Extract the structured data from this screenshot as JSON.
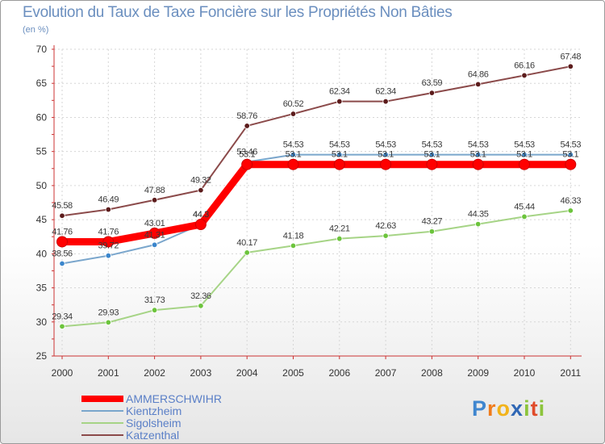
{
  "title": "Evolution du Taux de Taxe Foncière sur les Propriétés Non Bâties",
  "subtitle": "(en %)",
  "chart_data": {
    "type": "line",
    "title": "Evolution du Taux de Taxe Foncière sur les Propriétés Non Bâties",
    "ylabel": "(en %)",
    "xlabel": "",
    "categories": [
      "2000",
      "2001",
      "2002",
      "2003",
      "2004",
      "2005",
      "2006",
      "2007",
      "2008",
      "2009",
      "2010",
      "2011"
    ],
    "ylim": [
      25,
      70
    ],
    "yticks": [
      "25",
      "30",
      "35",
      "40",
      "45",
      "50",
      "55",
      "60",
      "65",
      "70"
    ],
    "grid": true,
    "legend_position": "bottom-left",
    "series": [
      {
        "name": "Katzenthal",
        "color": "#8b4a4a",
        "marker_color": "#5c1c1c",
        "values": [
          45.58,
          46.49,
          47.88,
          49.32,
          58.76,
          60.52,
          62.34,
          62.34,
          63.59,
          64.86,
          66.16,
          67.48
        ],
        "labels": [
          "45.58",
          "46.49",
          "47.88",
          "49.32",
          "58.76",
          "60.52",
          "62.34",
          "62.34",
          "63.59",
          "64.86",
          "66.16",
          "67.48"
        ]
      },
      {
        "name": "Sigolsheim",
        "color": "#a6d486",
        "marker_color": "#6cc43c",
        "values": [
          29.34,
          29.93,
          31.73,
          32.36,
          40.17,
          41.18,
          42.21,
          42.63,
          43.27,
          44.35,
          45.44,
          46.33
        ],
        "labels": [
          "29.34",
          "29.93",
          "31.73",
          "32.36",
          "40.17",
          "41.18",
          "42.21",
          "42.63",
          "43.27",
          "44.35",
          "45.44",
          "46.33"
        ]
      },
      {
        "name": "Kientzheim",
        "color": "#7aa6cc",
        "marker_color": "#3b86cc",
        "values": [
          38.56,
          39.72,
          41.31,
          44.3,
          53.46,
          54.53,
          54.53,
          54.53,
          54.53,
          54.53,
          54.53,
          54.53
        ],
        "labels": [
          "38.56",
          "39.72",
          "41.31",
          "44.3",
          "53.46",
          "54.53",
          "54.53",
          "54.53",
          "54.53",
          "54.53",
          "54.53",
          "54.53"
        ]
      },
      {
        "name": "AMMERSCHWIHR",
        "color": "#ff0000",
        "marker_color": "#ff0000",
        "highlight": true,
        "values": [
          41.76,
          41.76,
          43.01,
          44.3,
          53.1,
          53.1,
          53.1,
          53.1,
          53.1,
          53.1,
          53.1,
          53.1
        ],
        "labels": [
          "41.76",
          "41.76",
          "43.01",
          "44.3",
          "53.1",
          "53.1",
          "53.1",
          "53.1",
          "53.1",
          "53.1",
          "53.1",
          "53.1"
        ]
      }
    ]
  },
  "legend": [
    {
      "label": "AMMERSCHWIHR",
      "color": "#ff0000"
    },
    {
      "label": "Kientzheim",
      "color": "#7aa6cc"
    },
    {
      "label": "Sigolsheim",
      "color": "#a6d486"
    },
    {
      "label": "Katzenthal",
      "color": "#8b4a4a"
    }
  ],
  "logo": {
    "p": "P",
    "r": "r",
    "o": "o",
    "x": "x",
    "i1": "i",
    "t": "t",
    "i2": "i"
  }
}
